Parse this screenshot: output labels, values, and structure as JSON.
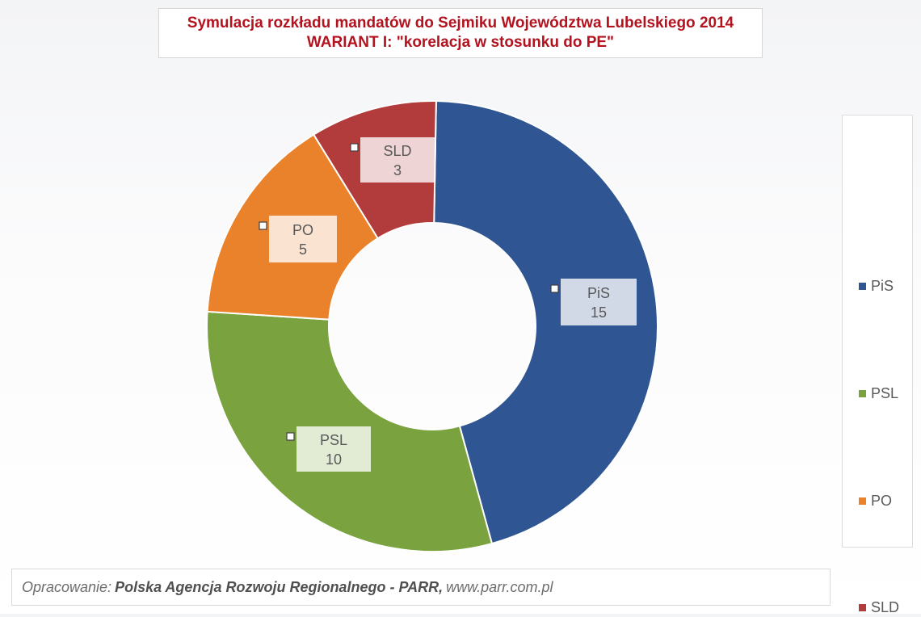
{
  "title": {
    "line1": "Symulacja rozkładu mandatów do Sejmiku Województwa Lubelskiego 2014",
    "line2": "WARIANT  I: \"korelacja w stosunku do PE\""
  },
  "chart_data": {
    "type": "pie",
    "variant": "donut",
    "categories": [
      "PiS",
      "PSL",
      "PO",
      "SLD"
    ],
    "values": [
      15,
      10,
      5,
      3
    ],
    "colors": [
      "#2f5593",
      "#7aa23e",
      "#e9822a",
      "#b23b3b"
    ],
    "legend": {
      "position": "right",
      "entries": [
        "PiS",
        "PSL",
        "PO",
        "SLD"
      ]
    },
    "data_labels": [
      {
        "name": "PiS",
        "value": "15"
      },
      {
        "name": "PSL",
        "value": "10"
      },
      {
        "name": "PO",
        "value": "5"
      },
      {
        "name": "SLD",
        "value": "3"
      }
    ]
  },
  "source": {
    "prefix": "Opracowanie:",
    "org": "Polska Agencja Rozwoju Regionalnego - PARR,",
    "url": "www.parr.com.pl"
  }
}
